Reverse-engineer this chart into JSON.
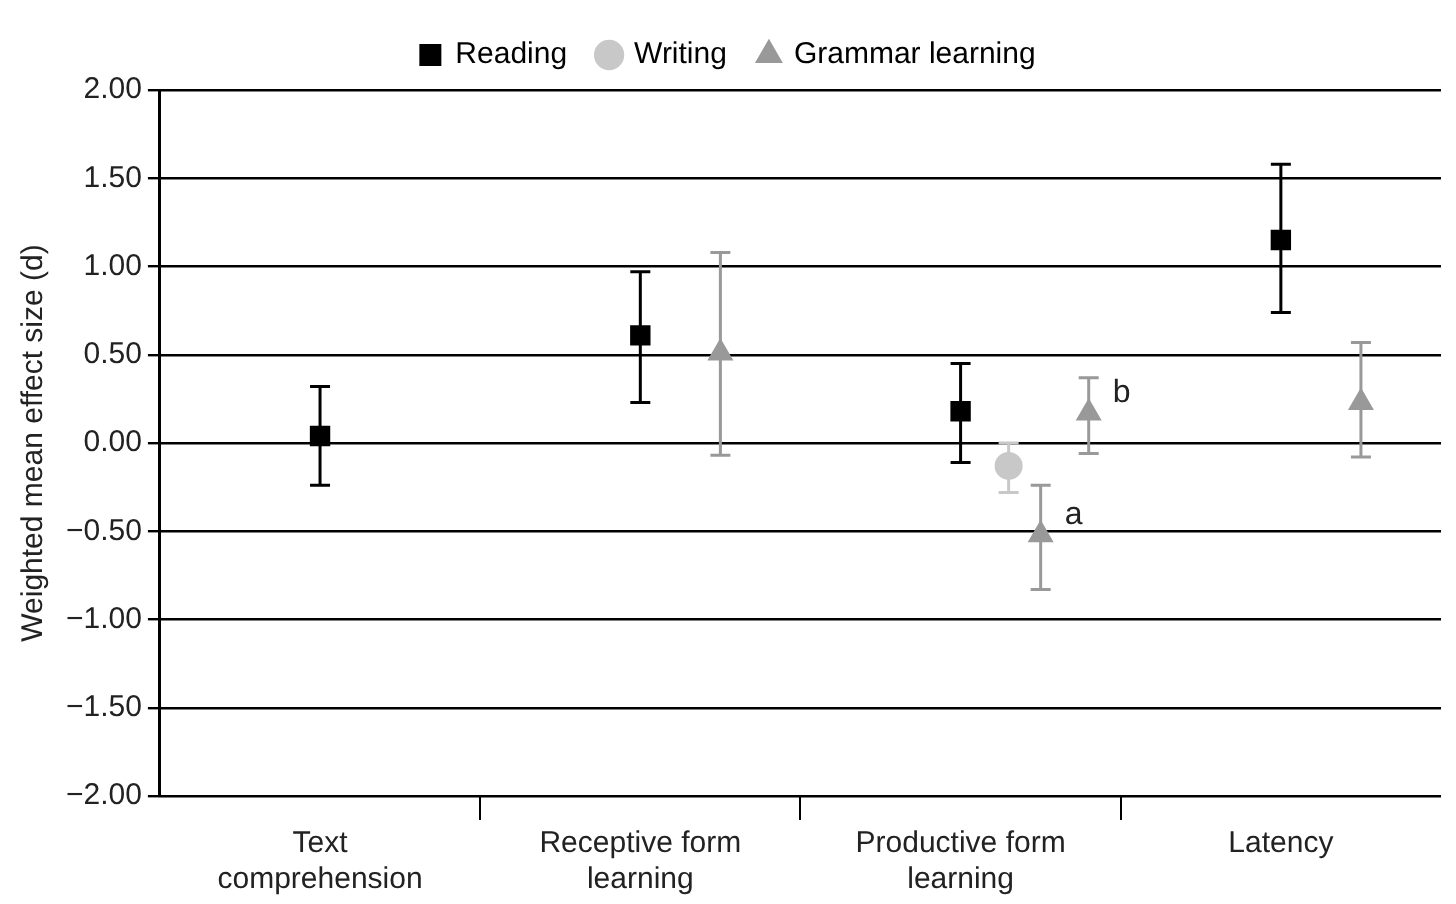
{
  "chart_data": {
    "type": "scatter",
    "ylabel": "Weighted mean effect size (d)",
    "categories": [
      "Text comprehension",
      "Receptive form learning",
      "Productive form learning",
      "Latency"
    ],
    "ylim": [
      -2,
      2
    ],
    "yticks": [
      {
        "value": 2,
        "label": "2.00"
      },
      {
        "value": 1.5,
        "label": "1.50"
      },
      {
        "value": 1,
        "label": "1.00"
      },
      {
        "value": 0.5,
        "label": "0.50"
      },
      {
        "value": 0,
        "label": "0.00"
      },
      {
        "value": -0.5,
        "label": "−0.50"
      },
      {
        "value": -1,
        "label": "−1.00"
      },
      {
        "value": -1.5,
        "label": "−1.50"
      },
      {
        "value": -2,
        "label": "−2.00"
      }
    ],
    "grid": "y",
    "legend": "top",
    "series": [
      {
        "name": "Reading",
        "color": "#000000",
        "marker": "square",
        "values": [
          0.04,
          0.61,
          0.18,
          1.15
        ],
        "errors": [
          [
            -0.24,
            0.32
          ],
          [
            0.23,
            0.97
          ],
          [
            -0.11,
            0.45
          ],
          [
            0.74,
            1.58
          ]
        ]
      },
      {
        "name": "Writing",
        "color": "#c8c8c8",
        "marker": "circle",
        "values": [
          null,
          null,
          -0.13,
          null
        ],
        "errors": [
          null,
          null,
          [
            -0.28,
            0
          ],
          null
        ]
      },
      {
        "name": "Grammar learning",
        "color": "#999999",
        "marker": "triangle",
        "values": [
          null,
          0.51,
          -0.52,
          0.23
        ],
        "errors": [
          null,
          [
            -0.07,
            1.08
          ],
          [
            -0.83,
            -0.24
          ],
          [
            -0.08,
            0.57
          ]
        ]
      },
      {
        "color": "#999999",
        "marker": "triangle",
        "values": [
          null,
          null,
          0.17,
          null
        ],
        "errors": [
          null,
          null,
          [
            -0.06,
            0.37
          ],
          null
        ]
      }
    ],
    "annotations": [
      "a",
      "b"
    ]
  }
}
